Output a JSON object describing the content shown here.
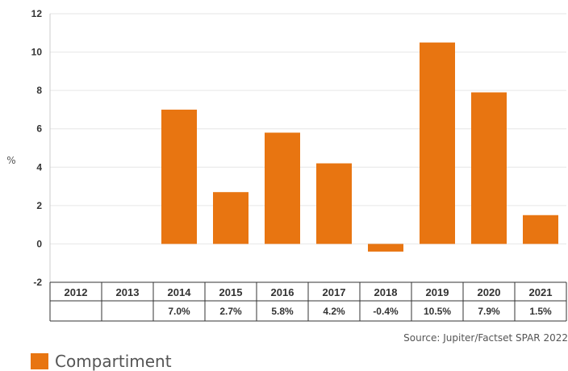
{
  "chart_data": {
    "type": "bar",
    "categories": [
      "2012",
      "2013",
      "2014",
      "2015",
      "2016",
      "2017",
      "2018",
      "2019",
      "2020",
      "2021"
    ],
    "series": [
      {
        "name": "Compartiment",
        "values": [
          null,
          null,
          7.0,
          2.7,
          5.8,
          4.2,
          -0.4,
          10.5,
          7.9,
          1.5
        ],
        "color": "#e87511"
      }
    ],
    "table_labels": [
      "",
      "",
      "7.0%",
      "2.7%",
      "5.8%",
      "4.2%",
      "-0.4%",
      "10.5%",
      "7.9%",
      "1.5%"
    ],
    "ylabel": "%",
    "ylim": [
      -2,
      12
    ],
    "yticks": [
      -2,
      0,
      2,
      4,
      6,
      8,
      10,
      12
    ],
    "grid": true,
    "legend_position": "bottom-left"
  },
  "source": "Source: Jupiter/Factset SPAR 2022"
}
